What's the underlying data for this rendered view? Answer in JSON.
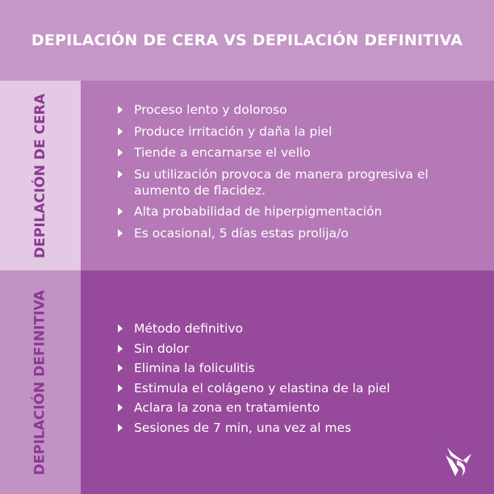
{
  "title": "DEPILACIÓN DE CERA VS DEPILACIÓN DEFINITIVA",
  "sections": [
    {
      "label": "DEPILACIÓN DE CERA",
      "items": [
        "Proceso lento y doloroso",
        "Produce irritación y daña la piel",
        "Tiende a encarnarse el vello",
        "Su utilización provoca de manera progresiva el aumento de flacidez.",
        "Alta probabilidad de hiperpigmentación",
        "Es ocasional, 5 días estas prolija/o"
      ]
    },
    {
      "label": "DEPILACIÓN DEFINITIVA",
      "items": [
        "Método definitivo",
        "Sin dolor",
        "Elimina la foliculitis",
        "Estimula el colágeno y elastina de la piel",
        "Aclara la zona en tratamiento",
        "Sesiones de 7 min, una vez al mes"
      ]
    }
  ],
  "colors": {
    "header": "#c497c6",
    "label_text": "#8b3a92",
    "panel1": "#b479b6",
    "panel2": "#974a9b"
  },
  "icons": {
    "bullet": "triangle-bullet-icon",
    "logo": "brand-logo"
  }
}
